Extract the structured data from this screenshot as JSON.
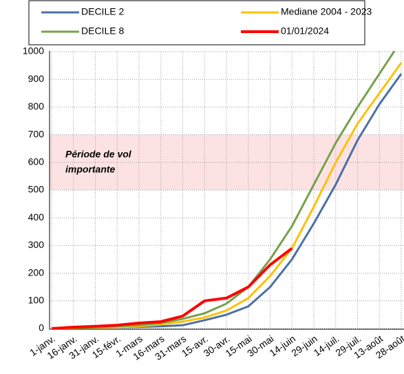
{
  "chart_data": {
    "type": "line",
    "annotation": [
      "Période de vol",
      "importante"
    ],
    "categories": [
      "1-janv.",
      "16-janv.",
      "31-janv.",
      "15-févr.",
      "1-mars",
      "16-mars",
      "31-mars",
      "15-avr.",
      "30-avr.",
      "15-mai",
      "30-mai",
      "14-juin",
      "29-juin",
      "14-juil.",
      "29-juil.",
      "13-août",
      "28-août"
    ],
    "series": [
      {
        "name": "DECILE 2",
        "color": "#4a6fa5",
        "values": [
          0,
          3,
          4,
          5,
          6,
          8,
          12,
          30,
          50,
          80,
          150,
          250,
          380,
          520,
          680,
          810,
          920
        ]
      },
      {
        "name": "Mediane 2004 - 2023",
        "color": "#ffc000",
        "values": [
          0,
          2,
          3,
          5,
          8,
          15,
          25,
          40,
          65,
          110,
          190,
          290,
          440,
          600,
          740,
          850,
          960
        ]
      },
      {
        "name": "DECILE 8",
        "color": "#77a14a",
        "values": [
          0,
          3,
          5,
          8,
          12,
          20,
          35,
          55,
          90,
          150,
          250,
          370,
          520,
          670,
          800,
          920,
          1040
        ]
      },
      {
        "name": "01/01/2024",
        "color": "#ff0000",
        "values": [
          0,
          5,
          8,
          12,
          20,
          25,
          45,
          100,
          110,
          150,
          230,
          290,
          null,
          null,
          null,
          null,
          null
        ]
      }
    ],
    "band": [
      500,
      700
    ],
    "band_color": "#fde2e4",
    "ylim": [
      0,
      1000
    ],
    "yticks": [
      0,
      100,
      200,
      300,
      400,
      500,
      600,
      700,
      800,
      900,
      1000
    ],
    "grid": true
  }
}
